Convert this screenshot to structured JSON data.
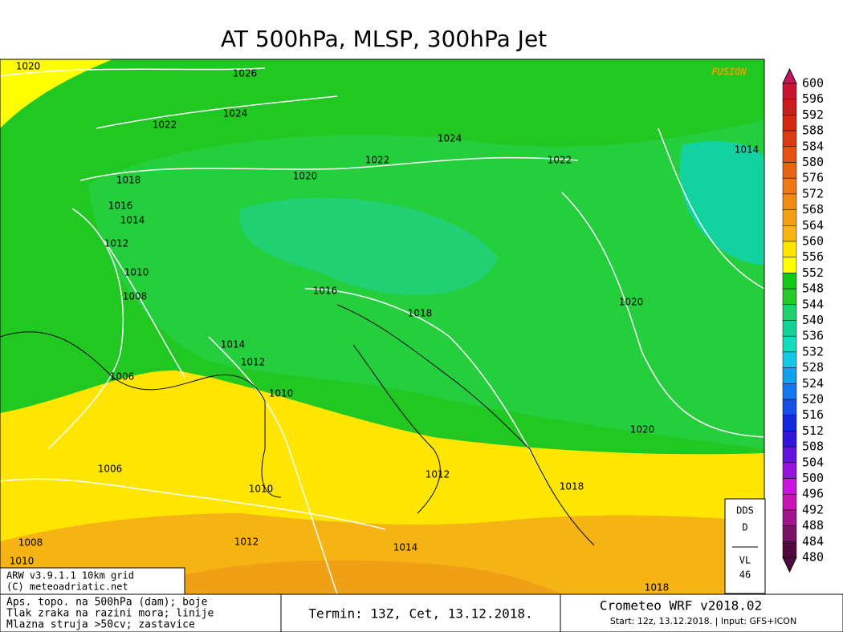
{
  "title": "AT 500hPa, MLSP, 300hPa Jet",
  "watermark": "FUSION",
  "isobar_labels": [
    "1020",
    "1026",
    "1024",
    "1022",
    "1024",
    "1022",
    "1022",
    "1014",
    "1020",
    "1018",
    "1016",
    "1014",
    "1012",
    "1010",
    "1008",
    "1016",
    "1018",
    "1020",
    "1014",
    "1012",
    "1010",
    "1006",
    "1006",
    "1010",
    "1012",
    "1018",
    "1020",
    "1008",
    "1010",
    "1012",
    "1014",
    "1018"
  ],
  "legend": {
    "levels": [
      "600",
      "596",
      "592",
      "588",
      "584",
      "580",
      "576",
      "572",
      "568",
      "564",
      "560",
      "556",
      "552",
      "548",
      "544",
      "540",
      "536",
      "532",
      "528",
      "524",
      "520",
      "516",
      "512",
      "508",
      "504",
      "500",
      "496",
      "492",
      "488",
      "484",
      "480"
    ],
    "colors": [
      "#c8145a",
      "#c81432",
      "#c81e1e",
      "#d22814",
      "#dc3c14",
      "#e65014",
      "#e66414",
      "#f07814",
      "#f08c14",
      "#f5a014",
      "#fab414",
      "#ffe600",
      "#ffff00",
      "#14c814",
      "#28c828",
      "#1ed26e",
      "#14d296",
      "#14dcbe",
      "#14c8e6",
      "#14a0f0",
      "#1478f0",
      "#1450e6",
      "#1428dc",
      "#3214dc",
      "#6414dc",
      "#9614dc",
      "#c814dc",
      "#c814b4",
      "#a0148c",
      "#781464",
      "#500a3c"
    ]
  },
  "model_box": [
    "ARW v3.9.1.1 10km grid",
    "(C) meteoadriatic.net"
  ],
  "footer": {
    "description": [
      "Aps. topo. na 500hPa (dam); boje",
      "Tlak zraka na razini mora; linije",
      "Mlazna struja >50cv; zastavice"
    ],
    "termin": "Termin: 13Z, Cet, 13.12.2018.",
    "product": "Crometeo WRF v2018.02",
    "start": "Start: 12z, 13.12.2018. | Input: GFS+ICON"
  },
  "side_box": [
    "DDS",
    "D",
    "VL",
    "46"
  ]
}
